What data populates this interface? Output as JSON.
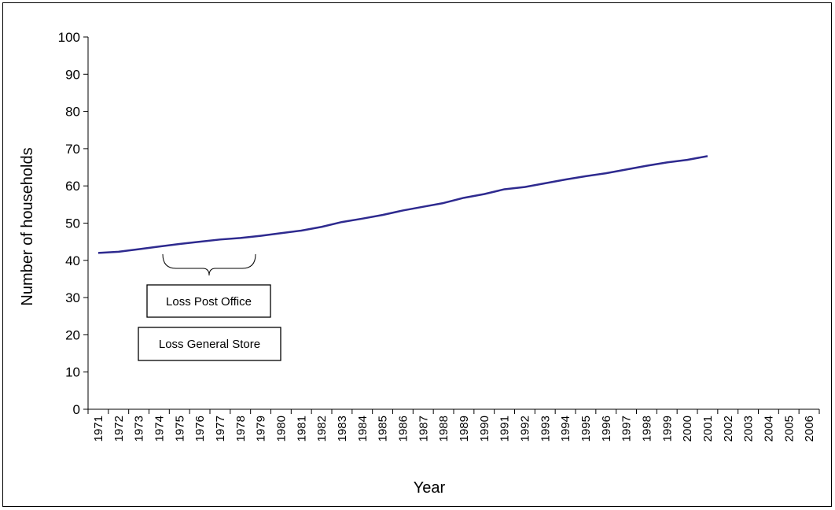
{
  "chart_data": {
    "type": "line",
    "title": "",
    "xlabel": "Year",
    "ylabel": "Number of households",
    "ylim": [
      0,
      100
    ],
    "yticks": [
      0,
      10,
      20,
      30,
      40,
      50,
      60,
      70,
      80,
      90,
      100
    ],
    "grid": false,
    "categories": [
      "1971",
      "1972",
      "1973",
      "1974",
      "1975",
      "1976",
      "1977",
      "1978",
      "1979",
      "1980",
      "1981",
      "1982",
      "1983",
      "1984",
      "1985",
      "1986",
      "1987",
      "1988",
      "1989",
      "1990",
      "1991",
      "1992",
      "1993",
      "1994",
      "1995",
      "1996",
      "1997",
      "1998",
      "1999",
      "2000",
      "2001",
      "2002",
      "2003",
      "2004",
      "2005",
      "2006"
    ],
    "series": [
      {
        "color": "#2e2a8f",
        "values": [
          42,
          42.3,
          43,
          43.7,
          44.4,
          45,
          45.6,
          46,
          46.6,
          47.3,
          48,
          49,
          50.3,
          51.2,
          52.2,
          53.4,
          54.4,
          55.4,
          56.8,
          57.8,
          59.1,
          59.7,
          60.7,
          61.7,
          62.6,
          63.4,
          64.4,
          65.4,
          66.3,
          67,
          68,
          null,
          null,
          null,
          null,
          null
        ]
      }
    ],
    "annotations": [
      {
        "text": "Loss Post Office",
        "span": [
          "1975",
          "1979"
        ]
      },
      {
        "text": "Loss General Store"
      }
    ]
  }
}
